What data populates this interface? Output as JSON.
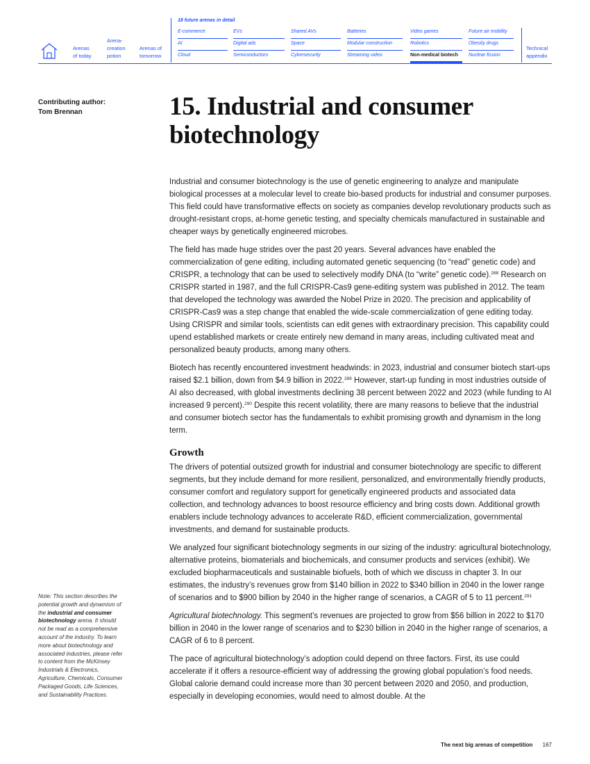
{
  "nav": {
    "home_icon": "home-icon",
    "arenas_today": "Arenas\nof today",
    "arena_creation": "Arena-\ncreation\npotion",
    "arenas_tomorrow": "Arenas of\ntomorrow",
    "detail_heading": "18 future arenas in detail",
    "technical_appendix": "Technical\nappendix",
    "grid": [
      [
        "E-commerce",
        "AI",
        "Cloud"
      ],
      [
        "EVs",
        "Digital ads",
        "Semiconductors"
      ],
      [
        "Shared AVs",
        "Space",
        "Cybersecurity"
      ],
      [
        "Batteries",
        "Modular construction",
        "Streaming video"
      ],
      [
        "Video games",
        "Robotics",
        "Non-medical biotech"
      ],
      [
        "Future air mobility",
        "Obesity drugs",
        "Nuclear fission"
      ]
    ],
    "active": "Non-medical biotech",
    "accent_color": "#2251ff"
  },
  "sidebar": {
    "contributing_label": "Contributing author:",
    "author_name": "Tom Brennan",
    "note_pre": "Note: This section describes the potential growth and dynamism of the ",
    "note_bold": "industrial and consumer biotechnology",
    "note_post": " arena. It should not be read as a comprehensive account of the industry. To learn more about biotechnology and associated industries, please refer to content from the McKinsey Industrials & Electronics, Agriculture, Chemicals, Consumer Packaged Goods, Life Sciences, and Sustainability Practices."
  },
  "title": "15. Industrial and consumer biotechnology",
  "body": {
    "p1": "Industrial and consumer biotechnology is the use of genetic engineering to analyze and manipulate biological processes at a molecular level to create bio-based products for industrial and consumer purposes. This field could have transformative effects on society as companies develop revolutionary products such as drought-resistant crops, at-home genetic testing, and specialty chemicals manufactured in sustainable and cheaper ways by genetically engineered microbes.",
    "p2a": "The field has made huge strides over the past 20 years. Several advances have enabled the commercialization of gene editing, including automated genetic sequencing (to “read” genetic code) and CRISPR, a technology that can be used to selectively modify DNA (to “write” genetic code).",
    "p2_fn": "288",
    "p2b": " Research on CRISPR started in 1987, and the full CRISPR-Cas9 gene-editing system was published in 2012. The team that developed the technology was awarded the Nobel Prize in 2020. The precision and applicability of CRISPR-Cas9 was a step change that enabled the wide-scale commercialization of gene editing today. Using CRISPR and similar tools, scientists can edit genes with extraordinary precision. This capability could upend established markets or create entirely new demand in many areas, including cultivated meat and personalized beauty products, among many others.",
    "p3a": "Biotech has recently encountered investment headwinds: in 2023, industrial and consumer biotech start-ups raised $2.1 billion, down from $4.9 billion in 2022.",
    "p3_fn1": "289",
    "p3b": " However, start-up funding in most industries outside of AI also decreased, with global investments declining 38 percent between 2022 and 2023 (while funding to AI increased 9 percent).",
    "p3_fn2": "290",
    "p3c": " Despite this recent volatility, there are many reasons to believe that the industrial and consumer biotech sector has the fundamentals to exhibit promising growth and dynamism in the long term.",
    "growth_heading": "Growth",
    "p4": "The drivers of potential outsized growth for industrial and consumer biotechnology are specific to different segments, but they include demand for more resilient, personalized, and environmentally friendly products, consumer comfort and regulatory support for genetically engineered products and associated data collection, and technology advances to boost resource efficiency and bring costs down. Additional growth enablers include technology advances to accelerate R&D, efficient commercialization, governmental investments, and demand for sustainable products.",
    "p5a": "We analyzed four significant biotechnology segments in our sizing of the industry: agricultural biotechnology, alternative proteins, biomaterials and biochemicals, and consumer products and services (exhibit). We excluded biopharmaceuticals and sustainable biofuels, both of which we discuss in chapter 3. In our estimates, the industry’s revenues grow from $140 billion in 2022 to $340 billion in 2040 in the lower range of scenarios and to $900 billion by 2040 in the higher range of scenarios, a CAGR of 5 to 11 percent.",
    "p5_fn": "291",
    "p6_italic": "Agricultural biotechnology.",
    "p6_rest": " This segment’s revenues are projected to grow from $56 billion in 2022 to $170 billion in 2040 in the lower range of scenarios and to $230 billion in 2040 in the higher range of scenarios, a CAGR of 6 to 8 percent.",
    "p7": "The pace of agricultural biotechnology’s adoption could depend on three factors. First, its use could accelerate if it offers a resource-efficient way of addressing the growing global population’s food needs. Global calorie demand could increase more than 30 percent between 2020 and 2050, and production, especially in developing economies, would need to almost double. At the"
  },
  "footer": {
    "publication": "The next big arenas of competition",
    "page": "167"
  }
}
